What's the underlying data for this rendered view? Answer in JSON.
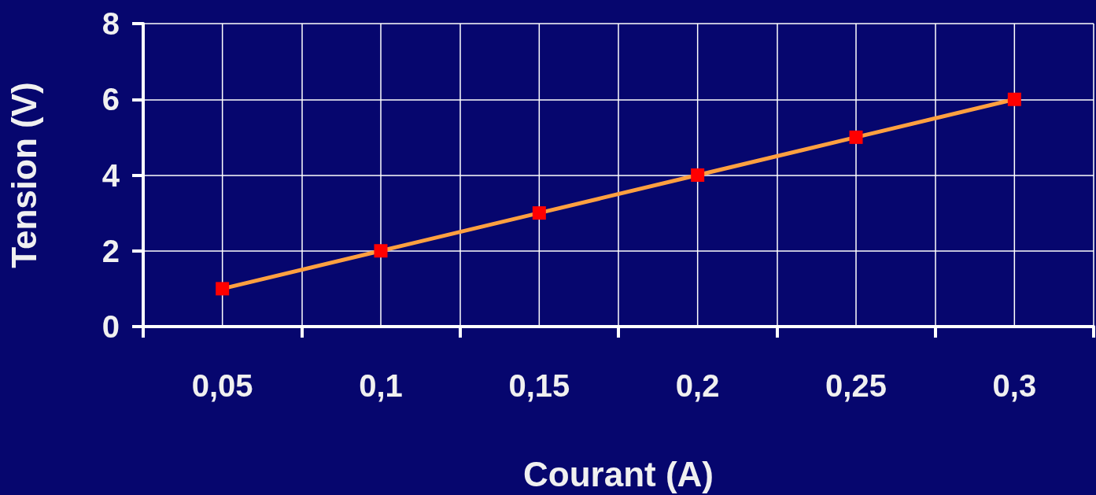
{
  "chart_data": {
    "type": "line",
    "xlabel": "Courant (A)",
    "ylabel": "Tension (V)",
    "categories": [
      "0,05",
      "0,1",
      "0,15",
      "0,2",
      "0,25",
      "0,3"
    ],
    "series": [
      {
        "color": "#ffa040",
        "colors": [
          "#ff0000",
          "#ff0000",
          "#ff0000",
          "#ff0000",
          "#ff0000",
          "#ff0000"
        ],
        "values": [
          1,
          2,
          3,
          4,
          5,
          6
        ]
      }
    ],
    "ylim": [
      0,
      8
    ],
    "yticks": [
      0,
      2,
      4,
      6,
      8
    ],
    "grid": true,
    "marker": "square",
    "line_style": "solid"
  }
}
